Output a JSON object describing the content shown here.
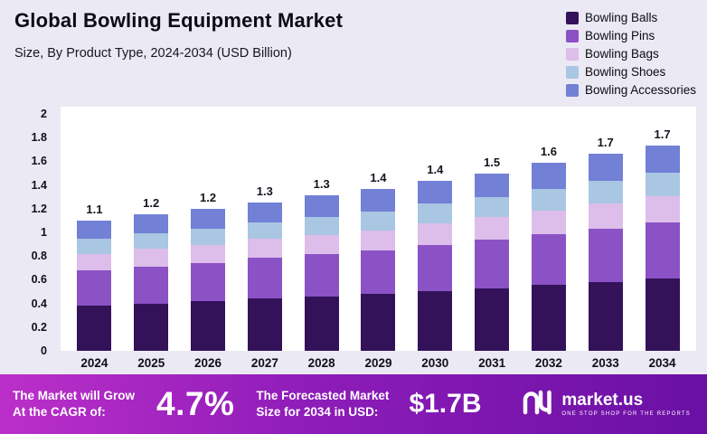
{
  "header": {
    "title": "Global Bowling Equipment Market",
    "subtitle": "Size, By Product Type, 2024-2034 (USD Billion)"
  },
  "chart_data": {
    "type": "bar",
    "stacked": true,
    "title": "Global Bowling Equipment Market",
    "subtitle": "Size, By Product Type, 2024-2034 (USD Billion)",
    "unit": "USD Billion",
    "categories": [
      "2024",
      "2025",
      "2026",
      "2027",
      "2028",
      "2029",
      "2030",
      "2031",
      "2032",
      "2033",
      "2034"
    ],
    "series": [
      {
        "name": "Bowling Balls",
        "color": "#33125a",
        "values": [
          0.38,
          0.4,
          0.42,
          0.44,
          0.46,
          0.48,
          0.5,
          0.53,
          0.56,
          0.58,
          0.61
        ]
      },
      {
        "name": "Bowling Pins",
        "color": "#8b52c6",
        "values": [
          0.3,
          0.31,
          0.32,
          0.34,
          0.36,
          0.37,
          0.39,
          0.41,
          0.43,
          0.45,
          0.47
        ]
      },
      {
        "name": "Bowling Bags",
        "color": "#ddbdea",
        "values": [
          0.14,
          0.15,
          0.15,
          0.16,
          0.16,
          0.17,
          0.18,
          0.19,
          0.2,
          0.21,
          0.22
        ]
      },
      {
        "name": "Bowling Shoes",
        "color": "#a9c6e2",
        "values": [
          0.13,
          0.13,
          0.14,
          0.14,
          0.15,
          0.16,
          0.17,
          0.17,
          0.18,
          0.19,
          0.2
        ]
      },
      {
        "name": "Bowling Accessories",
        "color": "#7280d6",
        "values": [
          0.15,
          0.16,
          0.17,
          0.17,
          0.18,
          0.19,
          0.19,
          0.2,
          0.22,
          0.23,
          0.23
        ]
      }
    ],
    "total_labels": [
      "1.1",
      "1.2",
      "1.2",
      "1.3",
      "1.3",
      "1.4",
      "1.4",
      "1.5",
      "1.6",
      "1.7",
      "1.7"
    ],
    "y_ticks": [
      "0",
      "0.2",
      "0.4",
      "0.6",
      "0.8",
      "1",
      "1.2",
      "1.4",
      "1.6",
      "1.8",
      "2"
    ],
    "ylim": [
      0,
      2
    ],
    "grid": false,
    "legend_position": "top-right"
  },
  "banner": {
    "cagr_label": "The Market will Grow\nAt the CAGR of:",
    "cagr_value": "4.7%",
    "forecast_label": "The Forecasted Market\nSize for 2034 in USD:",
    "forecast_value": "$1.7B",
    "logo_text": "market.us",
    "logo_tagline": "ONE STOP SHOP FOR THE REPORTS"
  },
  "colors": {
    "page_background": "#ebe9f3",
    "plot_background": "#ffffff",
    "banner_gradient_start": "#bb2fc9",
    "banner_gradient_end": "#6a10a4"
  }
}
